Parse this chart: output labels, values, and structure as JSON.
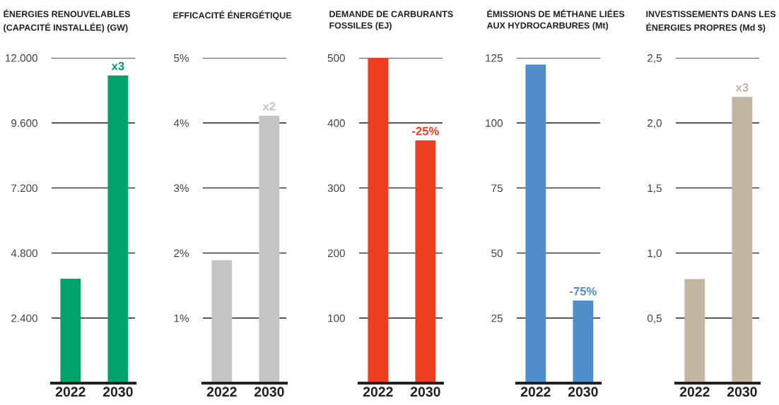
{
  "chart_data": [
    {
      "type": "bar",
      "title": "ÉNERGIES RENOUVELABLES\n(CAPACITÉ INSTALLÉE) (GW)",
      "categories": [
        "2022",
        "2030"
      ],
      "values": [
        3850,
        11350
      ],
      "color": "#00a46a",
      "annotations": [
        {
          "text": "x3",
          "x": "2030",
          "y": 11350
        }
      ],
      "ylim": [
        0,
        12000
      ],
      "yticks": [
        {
          "value": 2400,
          "label": "2.400"
        },
        {
          "value": 4800,
          "label": "4.800"
        },
        {
          "value": 7200,
          "label": "7.200"
        },
        {
          "value": 9600,
          "label": "9.600"
        },
        {
          "value": 12000,
          "label": "12.000"
        }
      ],
      "grid": "y"
    },
    {
      "type": "bar",
      "title": "EFFICACITÉ ÉNERGÉTIQUE",
      "categories": [
        "2022",
        "2030"
      ],
      "values": [
        1.89,
        4.11
      ],
      "color": "#c5c4c2",
      "annotations": [
        {
          "text": "x2",
          "x": "2030",
          "y": 4.11
        }
      ],
      "ylim": [
        0,
        5
      ],
      "yticks": [
        {
          "value": 1,
          "label": "1%"
        },
        {
          "value": 2,
          "label": "2%"
        },
        {
          "value": 3,
          "label": "3%"
        },
        {
          "value": 4,
          "label": "4%"
        },
        {
          "value": 5,
          "label": "5%"
        }
      ],
      "grid": "y"
    },
    {
      "type": "bar",
      "title": "DEMANDE DE CARBURANTS\nFOSSILES (EJ)",
      "categories": [
        "2022",
        "2030"
      ],
      "values": [
        500,
        373
      ],
      "color": "#ee3e22",
      "annotations": [
        {
          "text": "-25%",
          "x": "2030",
          "y": 373
        }
      ],
      "ylim": [
        0,
        500
      ],
      "yticks": [
        100,
        200,
        300,
        400,
        500
      ],
      "grid": "y"
    },
    {
      "type": "bar",
      "title": "ÉMISSIONS DE MÉTHANE LIÉES\nAUX HYDROCARBURES (Mt)",
      "categories": [
        "2022",
        "2030"
      ],
      "values": [
        122.4,
        31.7
      ],
      "color": "#4f8dcb",
      "annotations": [
        {
          "text": "-75%",
          "x": "2030",
          "y": 31.7
        }
      ],
      "ylim": [
        0,
        125
      ],
      "yticks": [
        25,
        50,
        75,
        100,
        125
      ],
      "grid": "y"
    },
    {
      "type": "bar",
      "title": "INVESTISSEMENTS DANS LES\nÉNERGIES PROPRES (Md $)",
      "categories": [
        "2022",
        "2030"
      ],
      "values": [
        0.8,
        2.2
      ],
      "color": "#c2b5a2",
      "annotations": [
        {
          "text": "x3",
          "x": "2030",
          "y": 2.2
        }
      ],
      "ylim": [
        0,
        2.5
      ],
      "yticks": [
        {
          "value": 0.5,
          "label": "0,5"
        },
        {
          "value": 1.0,
          "label": "1,0"
        },
        {
          "value": 1.5,
          "label": "1,5"
        },
        {
          "value": 2.0,
          "label": "2,0"
        },
        {
          "value": 2.5,
          "label": "2,5"
        }
      ],
      "grid": "y"
    }
  ]
}
